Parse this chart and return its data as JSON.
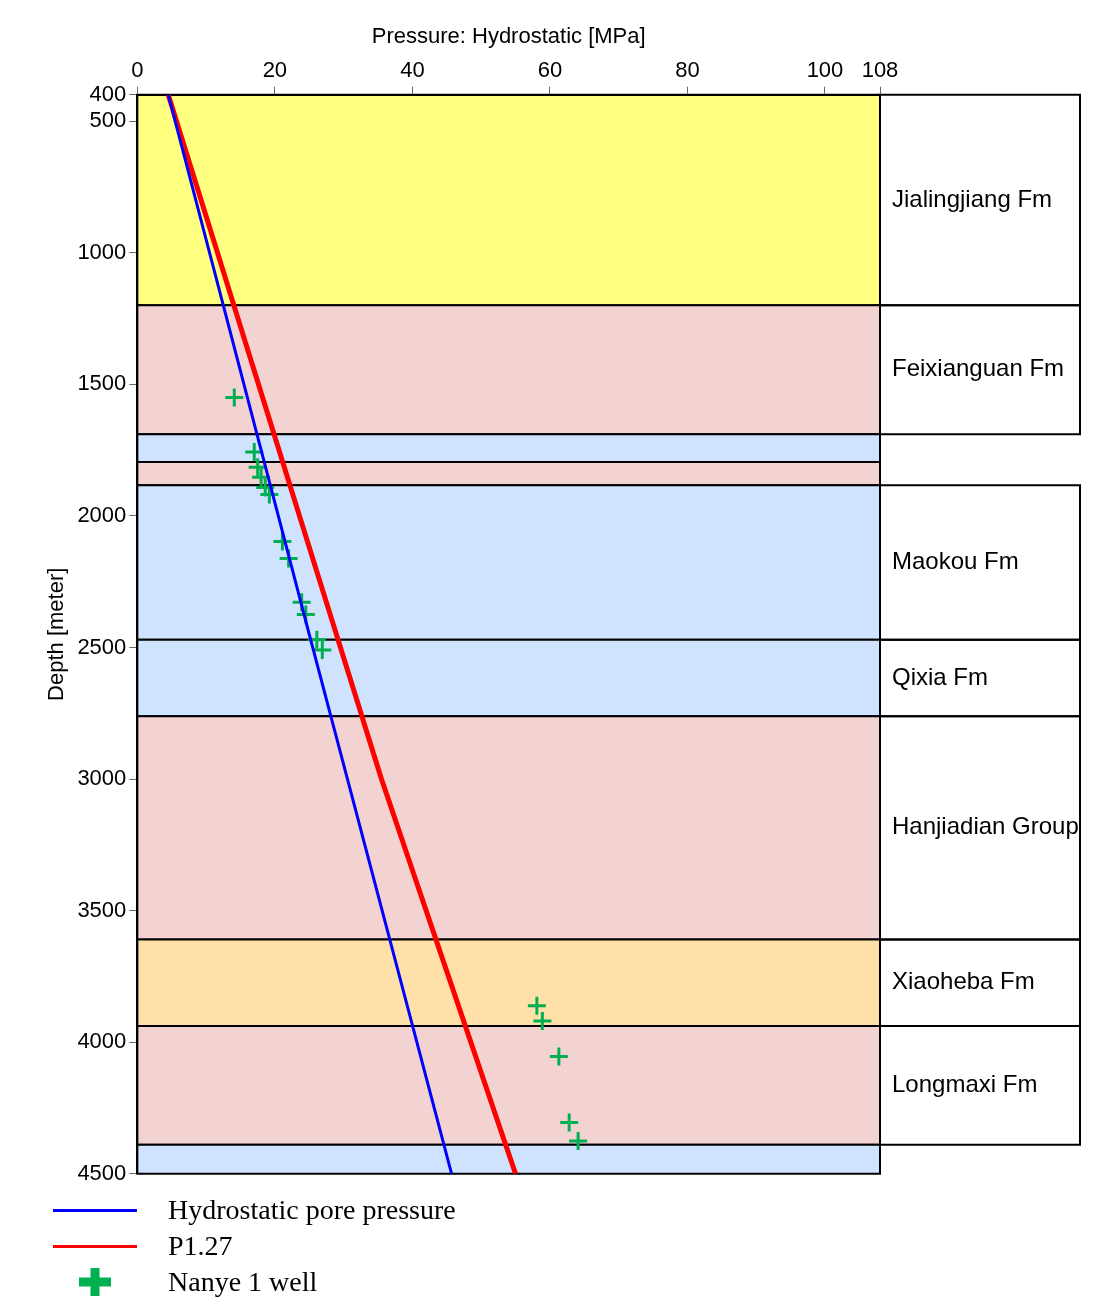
{
  "chart_data": {
    "type": "line",
    "xlabel": "Pressure: Hydrostatic [MPa]",
    "ylabel": "Depth [meter]",
    "xlim": [
      0,
      108
    ],
    "xticks": [
      0,
      20,
      40,
      60,
      80,
      100,
      108
    ],
    "ylim": [
      4500,
      400
    ],
    "yticks": [
      400,
      500,
      1000,
      1500,
      2000,
      2500,
      3000,
      3500,
      4000,
      4500
    ],
    "grid": false,
    "legend": "bottom left",
    "series": [
      {
        "name": "Hydrostatic pore pressure",
        "type": "line",
        "color": "#0000ff",
        "marker": "none",
        "x": [
          4.5,
          25.0,
          45.7
        ],
        "values": [
          400,
          2450,
          4500
        ]
      },
      {
        "name": "P1.27",
        "type": "line",
        "color": "#ff0000",
        "marker": "none",
        "x": [
          4.5,
          35.5,
          55.0
        ],
        "values": [
          400,
          3000,
          4500
        ]
      },
      {
        "name": "Nanye 1 well",
        "type": "scatter",
        "color": "#00b050",
        "marker": "cross",
        "x": [
          14.1,
          17.0,
          17.5,
          18.0,
          18.6,
          19.2,
          21.1,
          22.0,
          23.9,
          24.5,
          26.1,
          26.9,
          58.1,
          58.9,
          61.3,
          62.8,
          64.1
        ],
        "values": [
          1550,
          1757,
          1815,
          1853,
          1892,
          1919,
          2097,
          2162,
          2328,
          2375,
          2471,
          2510,
          3861,
          3919,
          4054,
          4305,
          4375
        ]
      }
    ],
    "bands": [
      {
        "axis": "y",
        "from": 400,
        "to": 1200,
        "label": "Jialingjiang Fm",
        "color": "#ffff80"
      },
      {
        "axis": "y",
        "from": 1200,
        "to": 1690,
        "label": "Feixianguan Fm",
        "color": "#f3d2d2"
      },
      {
        "axis": "y",
        "from": 1690,
        "to": 1795,
        "color": "#cfe3ff"
      },
      {
        "axis": "y",
        "from": 1795,
        "to": 1884,
        "color": "#f3d2d2"
      },
      {
        "axis": "y",
        "from": 1884,
        "to": 2471,
        "label": "Maokou Fm",
        "color": "#cfe3ff"
      },
      {
        "axis": "y",
        "from": 2471,
        "to": 2761,
        "label": "Qixia Fm",
        "color": "#cfe3ff"
      },
      {
        "axis": "y",
        "from": 2761,
        "to": 3610,
        "label": "Hanjiadian Group",
        "color": "#f3d2d2"
      },
      {
        "axis": "y",
        "from": 3610,
        "to": 3938,
        "label": "Xiaoheba Fm",
        "color": "#ffe0a8"
      },
      {
        "axis": "y",
        "from": 3938,
        "to": 4390,
        "label": "Longmaxi Fm",
        "color": "#f3d2d2"
      },
      {
        "axis": "y",
        "from": 4390,
        "to": 4500,
        "color": "#cfe3ff"
      }
    ]
  }
}
